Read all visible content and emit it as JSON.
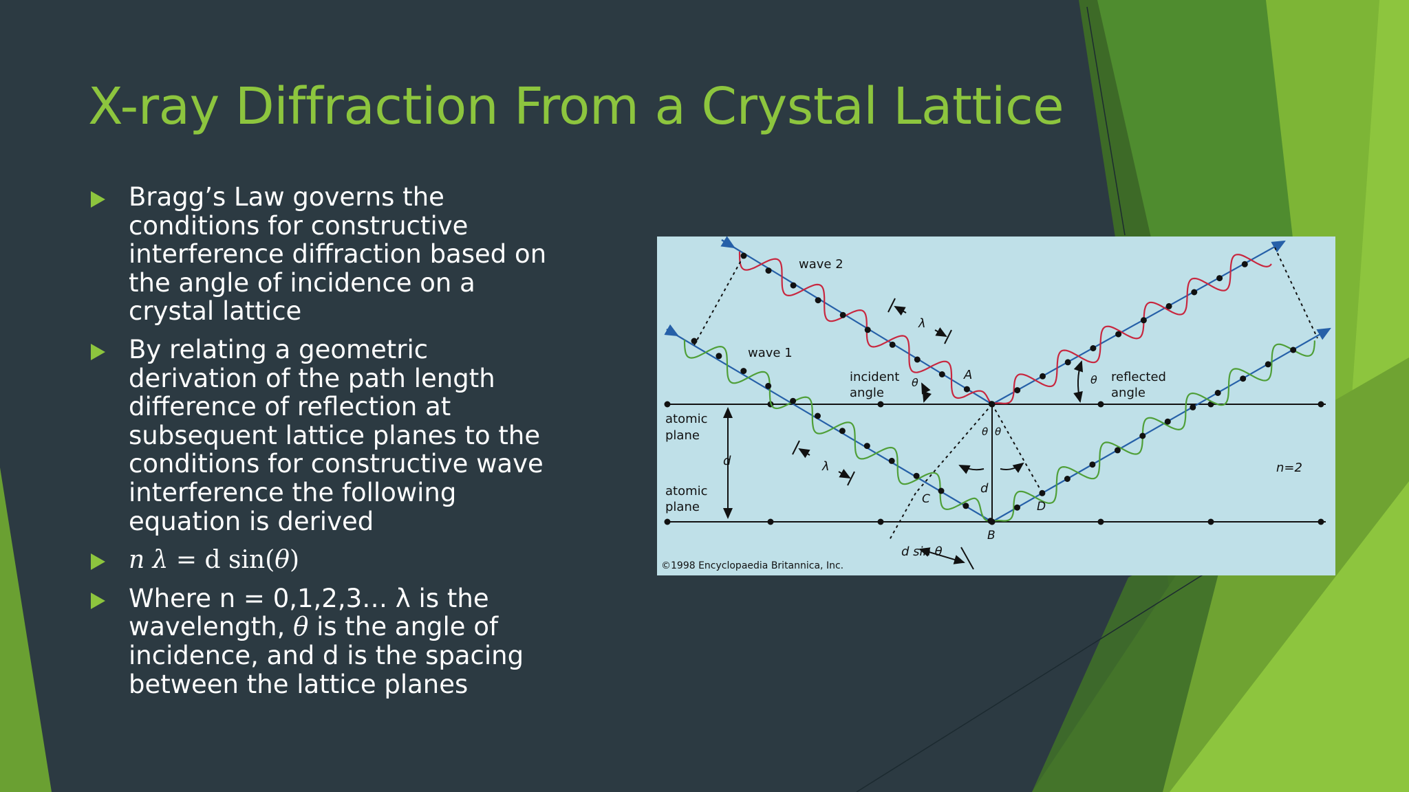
{
  "slide": {
    "title": "X-ray Diffraction From a Crystal Lattice",
    "bullets": [
      {
        "text": "Bragg’s Law governs the conditions for constructive interference diffraction based on the angle of incidence on a crystal lattice"
      },
      {
        "text": "By relating a geometric derivation of the path length difference of reflection at subsequent lattice planes to the conditions for constructive wave interference the following equation is derived"
      },
      {
        "eq": {
          "n": "n",
          "lambda": "λ",
          "equals": " = ",
          "d": "d",
          "sin": " sin(",
          "theta": "θ",
          "close": ")"
        }
      },
      {
        "part1": "Where n = 0,1,2,3… λ is the wavelength, ",
        "theta": "θ",
        "part2": " is the angle of incidence, and d is the spacing between the lattice planes"
      }
    ]
  },
  "diagram": {
    "labels": {
      "wave2": "wave 2",
      "wave1": "wave 1",
      "lambda": "λ",
      "incident1": "incident",
      "incident2": "angle",
      "reflected1": "reflected",
      "reflected2": "angle",
      "theta": "θ",
      "A": "A",
      "B": "B",
      "C": "C",
      "D": "D",
      "atomic": "atomic",
      "plane": "plane",
      "d": "d",
      "dsin": "d sin θ",
      "n2": "n=2",
      "copyright": "©1998 Encyclopaedia Britannica, Inc."
    }
  },
  "colors": {
    "background": "#2c3a42",
    "accent": "#8dc53e",
    "diagram_bg": "#bfe0e8",
    "wave2": "#c8273f",
    "wave1": "#4f9f38",
    "ray": "#2660a8"
  }
}
